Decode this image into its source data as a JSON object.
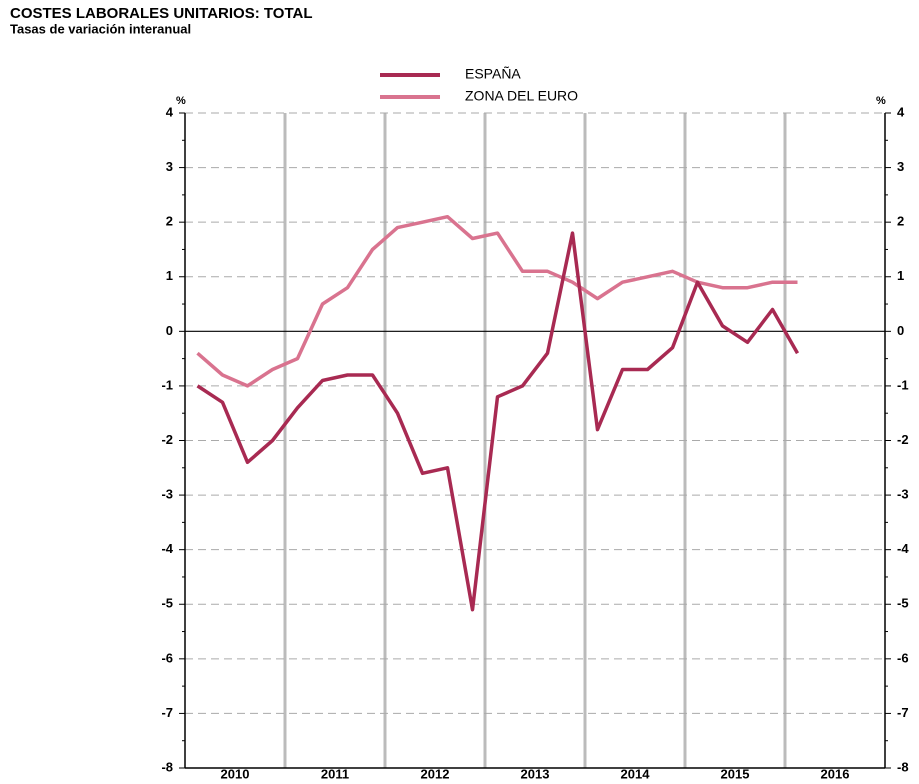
{
  "chart_data": {
    "type": "line",
    "title": "COSTES LABORALES UNITARIOS: TOTAL",
    "subtitle": "Tasas de variación interanual",
    "y_unit": "%",
    "categories": [
      "2010",
      "2011",
      "2012",
      "2013",
      "2014",
      "2015",
      "2016"
    ],
    "x": [
      2010.125,
      2010.375,
      2010.625,
      2010.875,
      2011.125,
      2011.375,
      2011.625,
      2011.875,
      2012.125,
      2012.375,
      2012.625,
      2012.875,
      2013.125,
      2013.375,
      2013.625,
      2013.875,
      2014.125,
      2014.375,
      2014.625,
      2014.875,
      2015.125,
      2015.375,
      2015.625,
      2015.875,
      2016.125
    ],
    "xlim": [
      2010,
      2017
    ],
    "series": [
      {
        "name": "ESPAÑA",
        "color": "#a82a52",
        "values": [
          -1.0,
          -1.3,
          -2.4,
          -2.0,
          -1.4,
          -0.9,
          -0.8,
          -0.8,
          -1.5,
          -2.6,
          -2.5,
          -5.1,
          -1.2,
          -1.0,
          -0.4,
          1.8,
          -1.8,
          -0.7,
          -0.7,
          -0.3,
          0.9,
          0.1,
          -0.2,
          0.4,
          -0.4
        ]
      },
      {
        "name": "ZONA DEL EURO",
        "color": "#d9738f",
        "values": [
          -0.4,
          -0.8,
          -1.0,
          -0.7,
          -0.5,
          0.5,
          0.8,
          1.5,
          1.9,
          2.0,
          2.1,
          1.7,
          1.8,
          1.1,
          1.1,
          0.9,
          0.6,
          0.9,
          1.0,
          1.1,
          0.9,
          0.8,
          0.8,
          0.9,
          0.9
        ]
      }
    ],
    "ylim": [
      -8,
      4
    ],
    "yticks": [
      -8,
      -7,
      -6,
      -5,
      -4,
      -3,
      -2,
      -1,
      0,
      1,
      2,
      3,
      4
    ],
    "grid": true
  }
}
